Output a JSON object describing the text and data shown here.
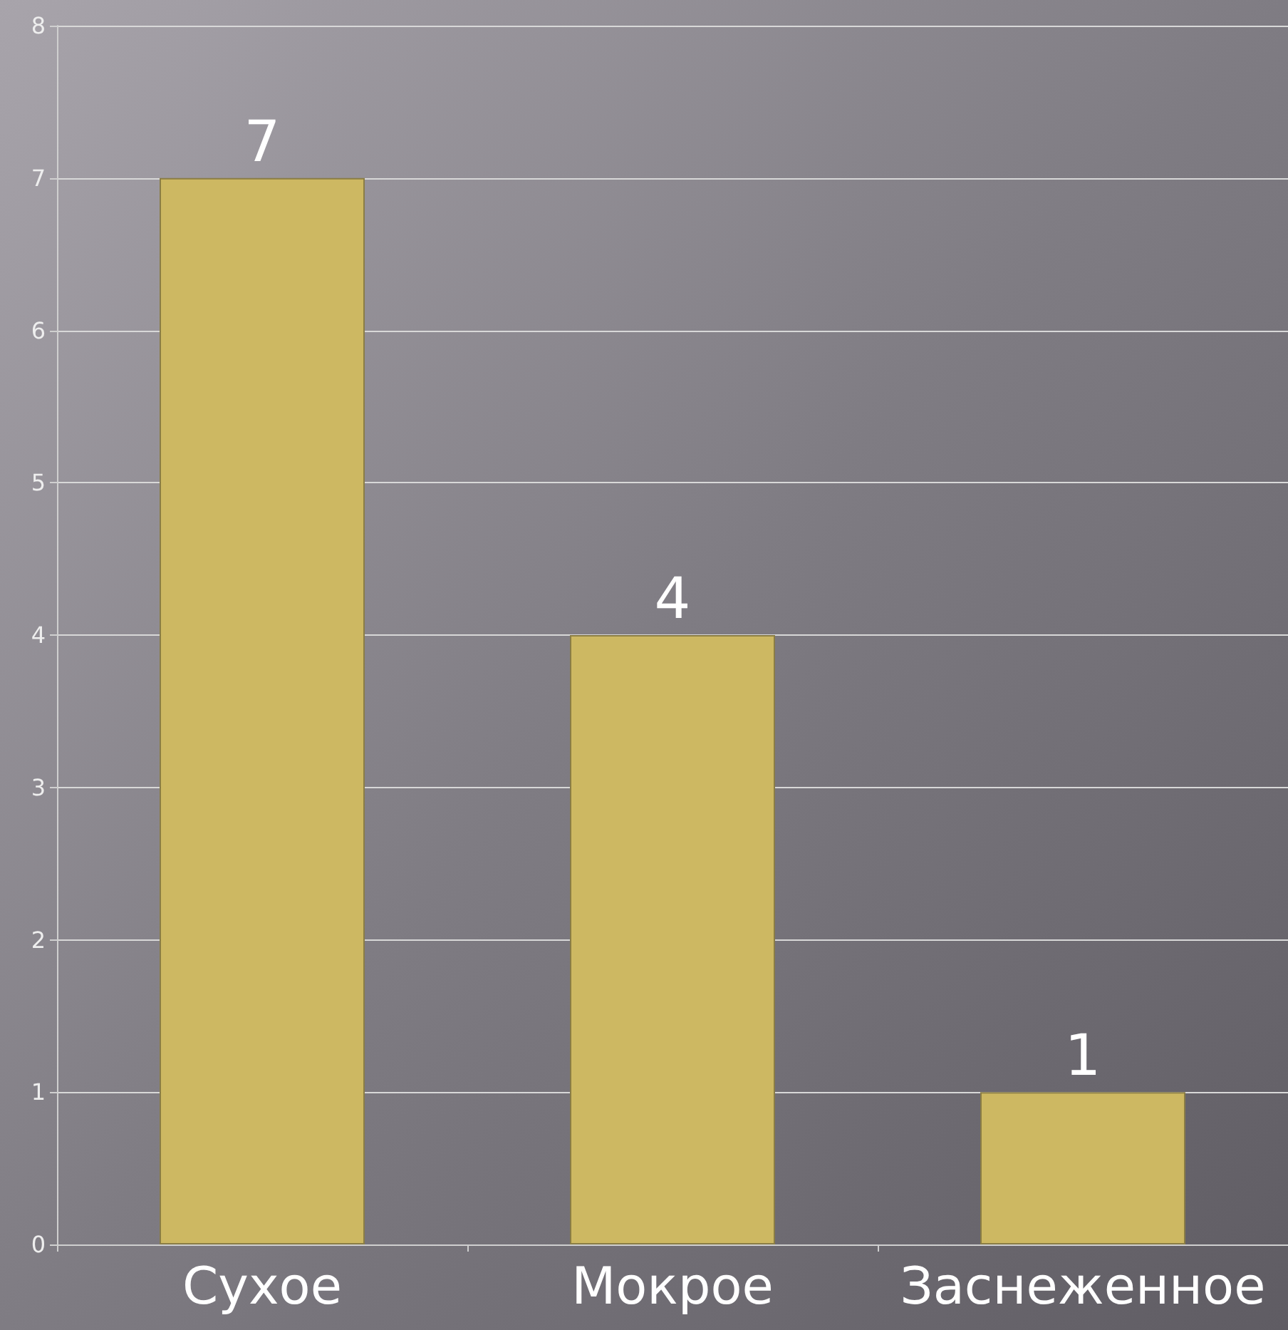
{
  "chart_data": {
    "type": "bar",
    "categories": [
      "Сухое",
      "Мокрое",
      "Заснеженное"
    ],
    "values": [
      7,
      4,
      1
    ],
    "color": "#cdb862",
    "ylim": [
      0,
      8
    ],
    "yticks": [
      0,
      1,
      2,
      3,
      4,
      5,
      6,
      7,
      8
    ],
    "grid": "y",
    "data_labels": true
  }
}
